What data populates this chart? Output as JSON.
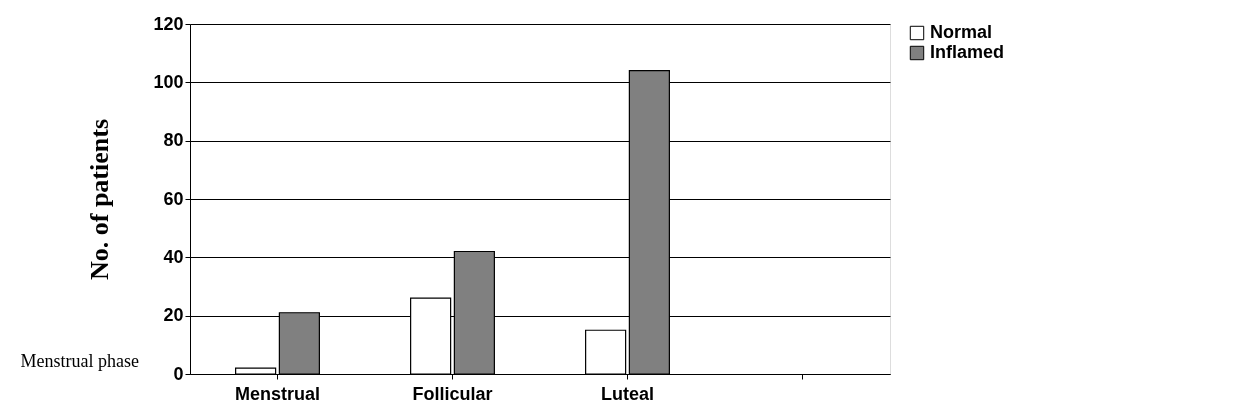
{
  "chart_data": {
    "type": "bar",
    "xlabel": "Menstrual phase",
    "ylabel": "No. of patients",
    "categories": [
      "Menstrual",
      "Follicular",
      "Luteal",
      null
    ],
    "series": [
      {
        "name": "Normal",
        "color": "#ffffff",
        "values": [
          2,
          26,
          15,
          null
        ]
      },
      {
        "name": "Inflamed",
        "color": "#808080",
        "values": [
          21,
          42,
          104,
          null
        ]
      }
    ],
    "ylim": [
      0,
      120
    ],
    "yticks": [
      0,
      20,
      40,
      60,
      80,
      100,
      120
    ],
    "grid": "y",
    "legend": "right"
  }
}
